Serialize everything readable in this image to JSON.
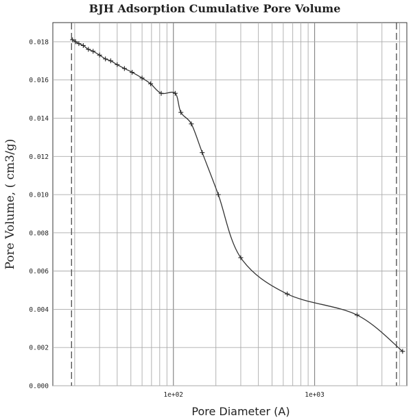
{
  "chart_data": {
    "type": "line",
    "title": "BJH Adsorption Cumulative Pore Volume",
    "xlabel": "Pore Diameter (A)",
    "ylabel": "Pore Volume, ( cm3/g)",
    "xscale": "log",
    "xlim": [
      14,
      4500
    ],
    "ylim": [
      0,
      0.019
    ],
    "yticks": [
      0.0,
      0.002,
      0.004,
      0.006,
      0.008,
      0.01,
      0.012,
      0.014,
      0.016,
      0.018
    ],
    "ytick_labels": [
      "0.000",
      "0.002",
      "0.004",
      "0.006",
      "0.008",
      "0.010",
      "0.012",
      "0.014",
      "0.016",
      "0.018"
    ],
    "xticks": [
      100,
      1000
    ],
    "xtick_labels": [
      "1e+02",
      "1e+03"
    ],
    "x_dashed_markers": [
      19,
      3800
    ],
    "grid": true,
    "series": [
      {
        "x": [
          19.3,
          20.3,
          21.4,
          23,
          25,
          27,
          30,
          33,
          36,
          40,
          45,
          51,
          60,
          69,
          82,
          103,
          113,
          134,
          160,
          208,
          300,
          640,
          2000,
          4200
        ],
        "values": [
          0.0181,
          0.018,
          0.0179,
          0.0178,
          0.0176,
          0.0175,
          0.0173,
          0.0171,
          0.017,
          0.0168,
          0.0166,
          0.0164,
          0.0161,
          0.0158,
          0.0153,
          0.0153,
          0.0143,
          0.0137,
          0.0122,
          0.01,
          0.0067,
          0.0048,
          0.0037,
          0.0018
        ]
      }
    ]
  }
}
